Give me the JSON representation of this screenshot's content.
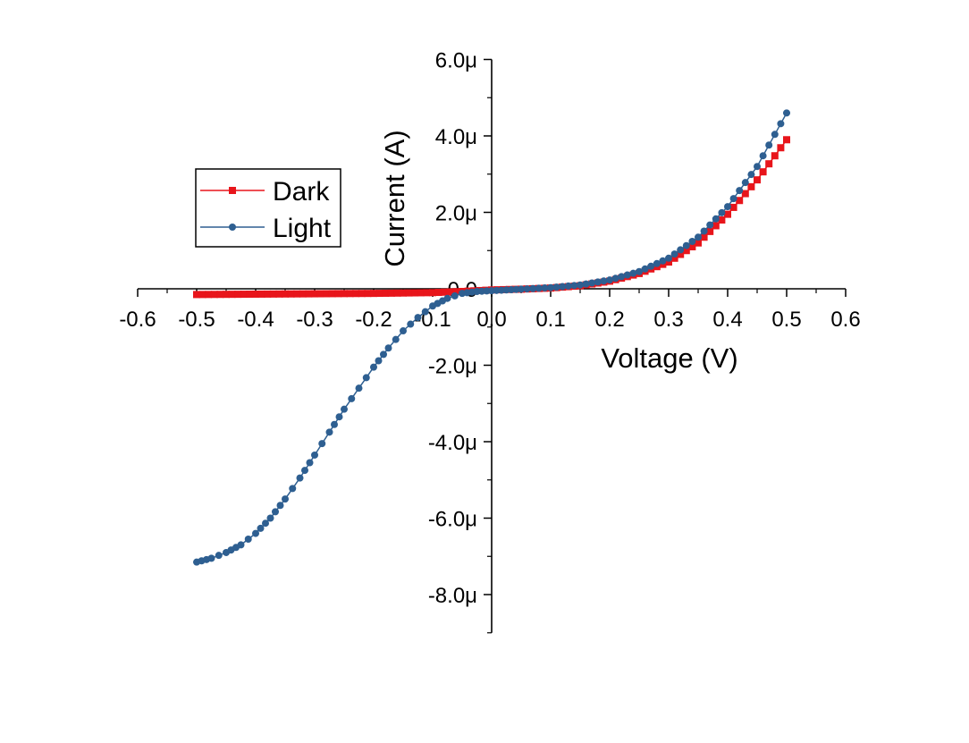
{
  "chart_data": {
    "type": "scatter",
    "title": "",
    "xlabel": "Voltage (V)",
    "ylabel": "Current (A)",
    "xlim": [
      -0.6,
      0.6
    ],
    "ylim": [
      -9.0,
      6.0
    ],
    "y_unit": "μ",
    "xticks": [
      -0.6,
      -0.5,
      -0.4,
      -0.3,
      -0.2,
      -0.1,
      0.0,
      0.1,
      0.2,
      0.3,
      0.4,
      0.5,
      0.6
    ],
    "xtick_labels": [
      "-0.6",
      "-0.5",
      "-0.4",
      "-0.3",
      "-0.2",
      "-0.1",
      "0.0",
      "0.1",
      "0.2",
      "0.3",
      "0.4",
      "0.5",
      "0.6"
    ],
    "yticks": [
      -8,
      -6,
      -4,
      -2,
      0,
      2,
      4,
      6
    ],
    "ytick_labels": [
      "-8.0μ",
      "-6.0μ",
      "-4.0μ",
      "-2.0μ",
      "0.0",
      "2.0μ",
      "4.0μ",
      "6.0μ"
    ],
    "grid": false,
    "legend_position": "left",
    "series": [
      {
        "name": "Dark",
        "color": "#e8151b",
        "marker": "square",
        "x": [
          -0.5,
          -0.4,
          -0.3,
          -0.2,
          -0.1,
          -0.05,
          0.0,
          0.05,
          0.1,
          0.15,
          0.2,
          0.25,
          0.3,
          0.35,
          0.4,
          0.45,
          0.5
        ],
        "y": [
          -0.15,
          -0.14,
          -0.13,
          -0.12,
          -0.1,
          -0.07,
          -0.03,
          -0.01,
          0.02,
          0.08,
          0.2,
          0.4,
          0.7,
          1.2,
          1.95,
          2.85,
          3.9
        ]
      },
      {
        "name": "Light",
        "color": "#2e5f91",
        "marker": "circle",
        "x": [
          -0.5,
          -0.475,
          -0.45,
          -0.425,
          -0.4,
          -0.375,
          -0.35,
          -0.325,
          -0.3,
          -0.275,
          -0.25,
          -0.225,
          -0.2,
          -0.175,
          -0.15,
          -0.125,
          -0.1,
          -0.075,
          -0.05,
          -0.025,
          0.0,
          0.025,
          0.05,
          0.1,
          0.15,
          0.2,
          0.25,
          0.3,
          0.35,
          0.4,
          0.45,
          0.5
        ],
        "y": [
          -7.15,
          -7.05,
          -6.9,
          -6.7,
          -6.4,
          -6.0,
          -5.5,
          -4.95,
          -4.35,
          -3.75,
          -3.15,
          -2.6,
          -2.05,
          -1.55,
          -1.1,
          -0.75,
          -0.45,
          -0.25,
          -0.12,
          -0.07,
          -0.05,
          -0.03,
          -0.01,
          0.03,
          0.1,
          0.23,
          0.45,
          0.8,
          1.35,
          2.15,
          3.2,
          4.6
        ]
      }
    ]
  }
}
